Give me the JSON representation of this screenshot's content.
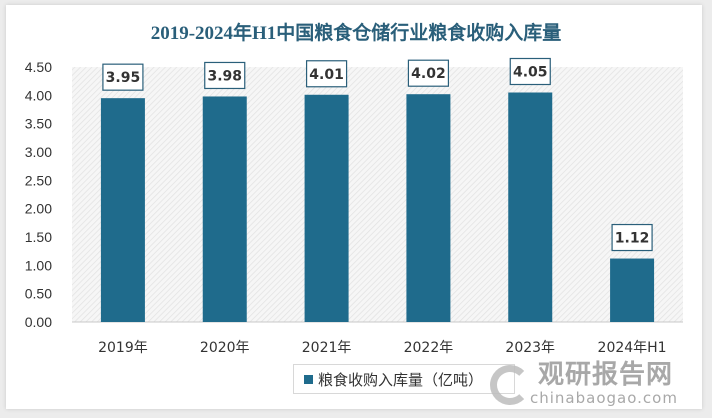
{
  "chart_data": {
    "type": "bar",
    "title": "2019-2024年H1中国粮食仓储行业粮食收购入库量",
    "categories": [
      "2019年",
      "2020年",
      "2021年",
      "2022年",
      "2023年",
      "2024年H1"
    ],
    "series": [
      {
        "name": "粮食收购入库量（亿吨）",
        "values": [
          3.95,
          3.98,
          4.01,
          4.02,
          4.05,
          1.12
        ]
      }
    ],
    "value_labels": [
      "3.95",
      "3.98",
      "4.01",
      "4.02",
      "4.05",
      "1.12"
    ],
    "yticks": [
      "0.00",
      "0.50",
      "1.00",
      "1.50",
      "2.00",
      "2.50",
      "3.00",
      "3.50",
      "4.00",
      "4.50"
    ],
    "ylim": [
      0,
      4.5
    ],
    "xlabel": "",
    "ylabel": "",
    "legend_position": "bottom",
    "bar_color": "#1f6b8c"
  },
  "watermark": {
    "brand": "观研报告网",
    "site": "chinabaogao.com"
  }
}
